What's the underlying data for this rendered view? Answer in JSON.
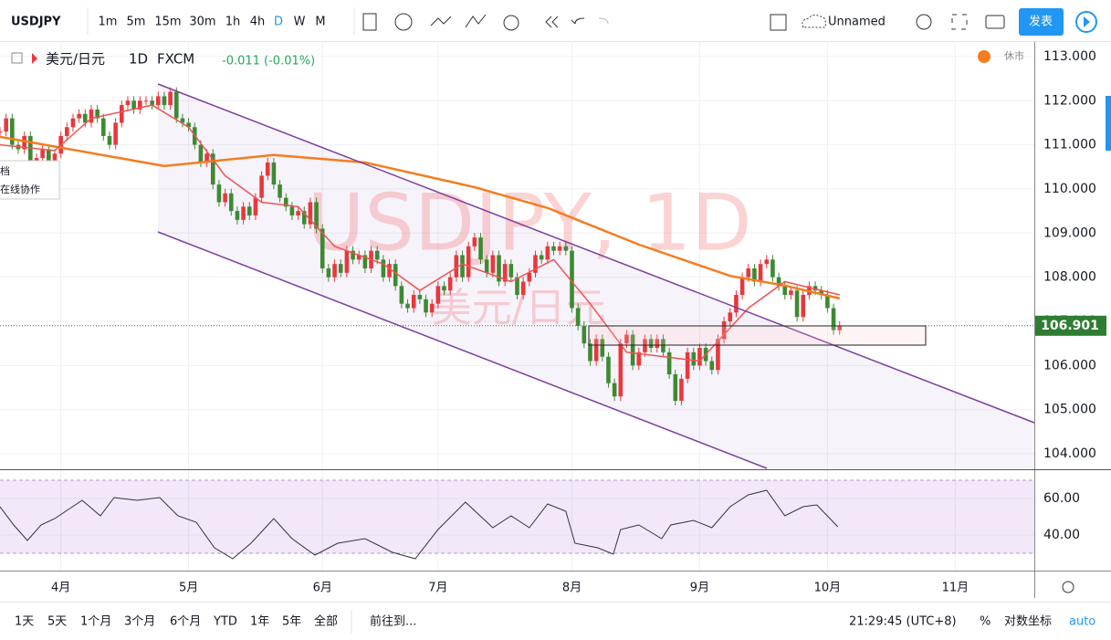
{
  "toolbar": {
    "symbol": "USDJPY",
    "intervals": [
      "1m",
      "5m",
      "15m",
      "30m",
      "1h",
      "4h",
      "D",
      "W",
      "M"
    ],
    "layout_name": "Unnamed",
    "publish": "发表"
  },
  "popup": [
    "档",
    "在线协作"
  ],
  "chart_data": {
    "type": "candlestick",
    "legend": {
      "name": "美元/日元",
      "interval": "1D",
      "source": "FXCM",
      "change": "-0.011 (-0.01%)",
      "status": "休市"
    },
    "watermark": {
      "symbol": "USDJPY, 1D",
      "name": "美元/日元"
    },
    "up_color": "#e8383d",
    "down_color": "#3d8a32",
    "closes": [
      111.3,
      111.6,
      111.0,
      110.9,
      111.2,
      110.6,
      110.7,
      110.9,
      110.6,
      110.8,
      111.2,
      111.4,
      111.6,
      111.7,
      111.5,
      111.8,
      111.6,
      111.2,
      111.0,
      111.5,
      111.9,
      112.0,
      111.8,
      112.0,
      112.0,
      111.9,
      112.1,
      111.9,
      112.2,
      111.6,
      111.5,
      111.4,
      111.0,
      110.6,
      110.8,
      110.1,
      109.7,
      109.9,
      109.5,
      109.3,
      109.6,
      109.4,
      109.8,
      110.3,
      110.6,
      110.1,
      109.8,
      109.6,
      109.4,
      109.5,
      109.2,
      109.7,
      109.1,
      108.2,
      108.0,
      108.3,
      108.1,
      108.6,
      108.4,
      108.5,
      108.2,
      108.6,
      108.4,
      108.0,
      108.3,
      107.8,
      107.4,
      107.3,
      107.6,
      107.5,
      107.2,
      107.4,
      107.8,
      107.7,
      108.0,
      108.5,
      108.0,
      108.7,
      108.9,
      108.4,
      108.1,
      108.5,
      107.9,
      108.3,
      108.0,
      107.6,
      107.9,
      108.1,
      108.5,
      108.4,
      108.7,
      108.6,
      108.7,
      108.6,
      107.3,
      106.9,
      106.5,
      106.1,
      106.6,
      106.2,
      105.6,
      105.3,
      106.5,
      106.7,
      106.0,
      106.3,
      106.6,
      106.4,
      106.6,
      106.3,
      105.8,
      105.2,
      105.7,
      106.3,
      106.0,
      106.4,
      106.1,
      105.9,
      106.6,
      107.0,
      107.2,
      107.6,
      108.0,
      108.2,
      107.9,
      108.3,
      108.4,
      108.0,
      107.8,
      107.6,
      107.7,
      107.1,
      107.6,
      107.8,
      107.7,
      107.6,
      107.3,
      106.8,
      106.9
    ],
    "xlim": [
      0,
      170
    ],
    "xticks": [
      {
        "value": 10,
        "label": "4月"
      },
      {
        "value": 31,
        "label": "5月"
      },
      {
        "value": 53,
        "label": "6月"
      },
      {
        "value": 72,
        "label": "7月"
      },
      {
        "value": 94,
        "label": "8月"
      },
      {
        "value": 115,
        "label": "9月"
      },
      {
        "value": 136,
        "label": "10月"
      },
      {
        "value": 157,
        "label": "11月"
      }
    ],
    "ylim": [
      103.67,
      113.35
    ],
    "yticks": [
      {
        "value": 104,
        "label": "104.000"
      },
      {
        "value": 105,
        "label": "105.000"
      },
      {
        "value": 106,
        "label": "106.000"
      },
      {
        "value": 107,
        "label": "107.000"
      },
      {
        "value": 108,
        "label": "108.000"
      },
      {
        "value": 109,
        "label": "109.000"
      },
      {
        "value": 110,
        "label": "110.000"
      },
      {
        "value": 111,
        "label": "111.000"
      },
      {
        "value": 112,
        "label": "112.000"
      },
      {
        "value": 113,
        "label": "113.000"
      }
    ],
    "last_price": {
      "value": 106.901,
      "label": "106.901"
    },
    "moving_averages": [
      {
        "color": "#f57c1f",
        "x": [
          0,
          27,
          45,
          60,
          78,
          90,
          105,
          120,
          129,
          138
        ],
        "values": [
          111.18,
          110.52,
          110.77,
          110.6,
          110.04,
          109.57,
          108.74,
          108.03,
          107.81,
          107.52
        ]
      },
      {
        "color": "#ef5350",
        "x": [
          0,
          9,
          15,
          25,
          31,
          37,
          43,
          49,
          55,
          63,
          69,
          76,
          84,
          91,
          97,
          103,
          109,
          115,
          123,
          129,
          135,
          138
        ],
        "values": [
          111.0,
          110.87,
          111.6,
          111.9,
          111.4,
          110.3,
          109.7,
          109.6,
          108.7,
          108.3,
          107.7,
          108.3,
          107.9,
          108.4,
          107.4,
          106.3,
          106.2,
          106.1,
          107.3,
          107.9,
          107.7,
          107.6
        ]
      }
    ],
    "rsi": {
      "color": "#333333",
      "x": [
        0,
        2.25,
        4.5,
        6.75,
        9,
        13.5,
        16.5,
        18.75,
        22.5,
        26.25,
        29.25,
        32.25,
        35.25,
        38.25,
        41.25,
        45,
        48,
        51.75,
        55.5,
        60,
        64.5,
        68.25,
        72,
        76.5,
        81,
        84,
        87,
        90,
        93,
        94.5,
        98.25,
        100.8,
        102,
        105,
        108.75,
        110.25,
        114,
        117,
        120,
        123,
        126,
        129,
        132,
        134.25,
        137.7
      ],
      "values": [
        55.5,
        45.5,
        37,
        45.5,
        49,
        59,
        50.5,
        60.5,
        59,
        60.5,
        50.5,
        47,
        33,
        27,
        35.5,
        49,
        38,
        29,
        35.5,
        38,
        30.5,
        27,
        43,
        58,
        44,
        50.5,
        44,
        57,
        53,
        35.5,
        33,
        29.5,
        43,
        45.5,
        38,
        45.5,
        48,
        44,
        55.5,
        62,
        64.5,
        50.5,
        55.5,
        56.5,
        44.5
      ],
      "ylim": [
        20.5,
        75.5
      ],
      "yticks": [
        {
          "value": 60,
          "label": "60.00"
        },
        {
          "value": 40,
          "label": "40.00"
        }
      ],
      "bands": [
        30,
        70
      ]
    }
  },
  "footer": {
    "ranges": [
      "1天",
      "5天",
      "1个月",
      "3个月",
      "6个月",
      "YTD",
      "1年",
      "5年",
      "全部"
    ],
    "goto": "前往到...",
    "time": "21:29:45 (UTC+8)",
    "percent": "%",
    "log": "对数坐标",
    "auto": "auto"
  }
}
